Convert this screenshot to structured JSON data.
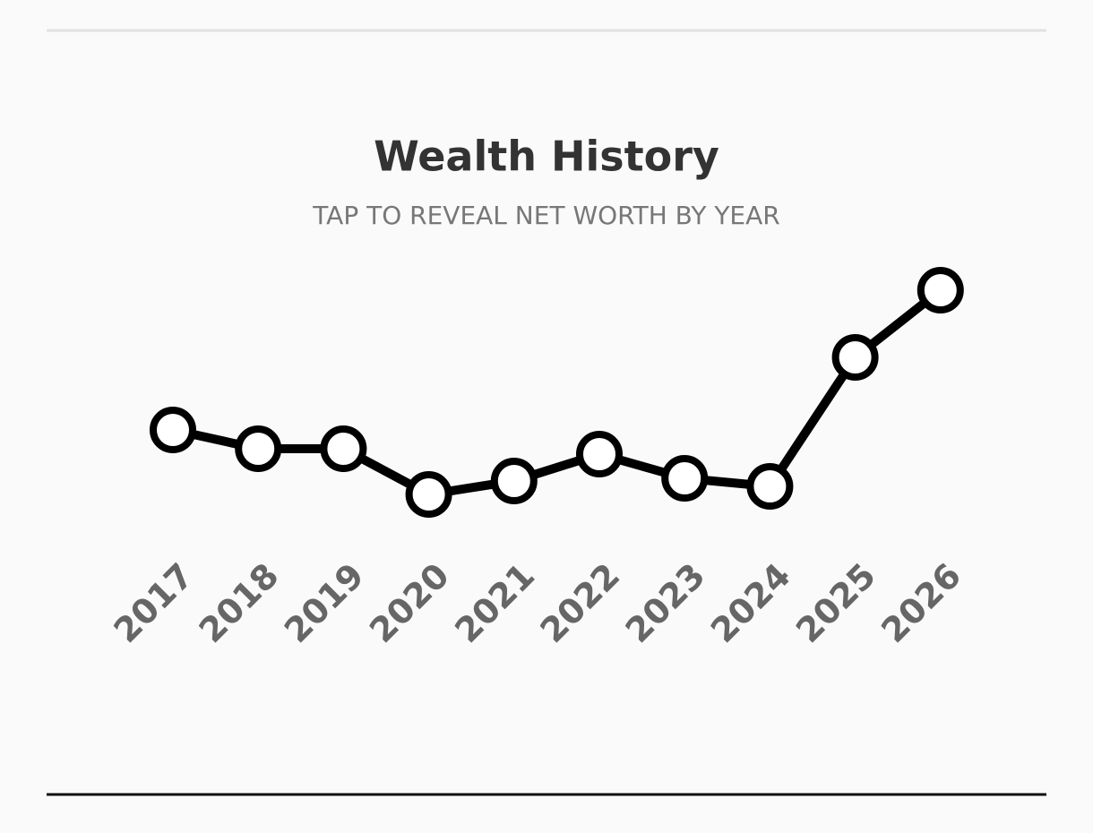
{
  "chart_data": {
    "type": "line",
    "title": "Wealth History",
    "subtitle": "TAP TO REVEAL NET WORTH BY YEAR",
    "categories": [
      "2017",
      "2018",
      "2019",
      "2020",
      "2021",
      "2022",
      "2023",
      "2024",
      "2025",
      "2026"
    ],
    "series": [
      {
        "color": "#000000",
        "values": [
          40,
          33,
          33,
          16,
          21,
          31,
          22,
          19,
          67,
          92
        ]
      }
    ],
    "ylim": [
      0,
      100
    ]
  }
}
